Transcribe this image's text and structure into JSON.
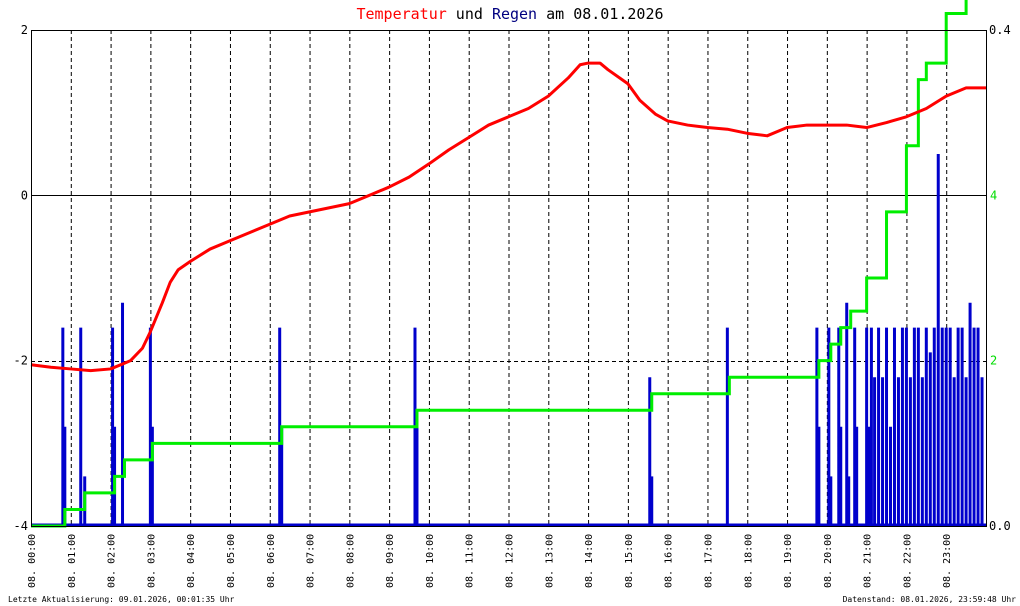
{
  "title": {
    "part1": "Temperatur",
    "part2": " und ",
    "part3": "Regen",
    "part4": " am 08.01.2026"
  },
  "footer": {
    "left": "Letzte Aktualisierung: 09.01.2026, 00:01:35 Uhr",
    "right": "Datenstand: 08.01.2026, 23:59:48 Uhr"
  },
  "colors": {
    "temperature": "#ff0000",
    "rain": "#0000cc",
    "rain_cumulative": "#00ee00",
    "title_regen": "#000080",
    "grid": "#000000",
    "right_axis_green": "#00dd00"
  },
  "chart_data": {
    "type": "line",
    "x_tick_labels": [
      "08. 00:00",
      "08. 01:00",
      "08. 02:00",
      "08. 03:00",
      "08. 04:00",
      "08. 05:00",
      "08. 06:00",
      "08. 07:00",
      "08. 08:00",
      "08. 09:00",
      "08. 10:00",
      "08. 11:00",
      "08. 12:00",
      "08. 13:00",
      "08. 14:00",
      "08. 15:00",
      "08. 16:00",
      "08. 17:00",
      "08. 18:00",
      "08. 19:00",
      "08. 20:00",
      "08. 21:00",
      "08. 22:00",
      "08. 23:00"
    ],
    "y_left_ticks": [
      "2",
      "0",
      "-2",
      "-4"
    ],
    "y_left_range": [
      -4,
      2
    ],
    "y_right_ticks_outer": [
      "0.4",
      "0.0"
    ],
    "y_right_range_rate": [
      0.0,
      0.4
    ],
    "y_right_ticks_cumulative": [
      "4",
      "2"
    ],
    "y_right_range_cumulative": [
      0,
      6
    ],
    "grid": true,
    "series": [
      {
        "name": "Temperatur",
        "axis": "left",
        "x": [
          0.0,
          0.5,
          1.0,
          1.5,
          2.0,
          2.5,
          2.8,
          3.0,
          3.3,
          3.5,
          3.7,
          4.0,
          4.5,
          5.0,
          5.5,
          6.0,
          6.5,
          7.0,
          7.5,
          8.0,
          8.5,
          9.0,
          9.5,
          10.0,
          10.5,
          11.0,
          11.5,
          12.0,
          12.5,
          13.0,
          13.5,
          13.8,
          14.0,
          14.3,
          14.5,
          15.0,
          15.3,
          15.7,
          16.0,
          16.5,
          17.0,
          17.5,
          18.0,
          18.5,
          19.0,
          19.5,
          20.0,
          20.5,
          21.0,
          21.5,
          22.0,
          22.5,
          23.0,
          23.5,
          24.0
        ],
        "y": [
          -2.05,
          -2.08,
          -2.1,
          -2.12,
          -2.1,
          -2.0,
          -1.85,
          -1.65,
          -1.3,
          -1.05,
          -0.9,
          -0.8,
          -0.65,
          -0.55,
          -0.45,
          -0.35,
          -0.25,
          -0.2,
          -0.15,
          -0.1,
          0.0,
          0.1,
          0.22,
          0.38,
          0.55,
          0.7,
          0.85,
          0.95,
          1.05,
          1.2,
          1.42,
          1.58,
          1.6,
          1.6,
          1.52,
          1.35,
          1.15,
          0.98,
          0.9,
          0.85,
          0.82,
          0.8,
          0.75,
          0.72,
          0.82,
          0.85,
          0.85,
          0.85,
          0.82,
          0.88,
          0.95,
          1.05,
          1.2,
          1.3,
          1.3
        ]
      },
      {
        "name": "Regen",
        "axis": "right_rate",
        "x": [
          0.8,
          0.85,
          1.25,
          1.35,
          2.05,
          2.1,
          2.3,
          2.4,
          3.0,
          3.05,
          6.25,
          6.3,
          9.65,
          9.7,
          15.55,
          15.6,
          17.5,
          17.55,
          19.75,
          19.8,
          20.05,
          20.1,
          20.3,
          20.35,
          20.5,
          20.55,
          20.7,
          20.75,
          21.0,
          21.05,
          21.12,
          21.2,
          21.3,
          21.4,
          21.5,
          21.6,
          21.7,
          21.8,
          21.9,
          22.0,
          22.1,
          22.2,
          22.3,
          22.4,
          22.5,
          22.6,
          22.7,
          22.8,
          22.9,
          23.0,
          23.1,
          23.2,
          23.3,
          23.4,
          23.5,
          23.6,
          23.7,
          23.8,
          23.9
        ],
        "y": [
          0.16,
          0.08,
          0.16,
          0.04,
          0.16,
          0.08,
          0.18,
          0.0,
          0.16,
          0.08,
          0.16,
          0.08,
          0.16,
          0.08,
          0.12,
          0.04,
          0.16,
          0.0,
          0.16,
          0.08,
          0.16,
          0.04,
          0.16,
          0.08,
          0.18,
          0.04,
          0.16,
          0.08,
          0.16,
          0.08,
          0.16,
          0.12,
          0.16,
          0.12,
          0.16,
          0.08,
          0.16,
          0.12,
          0.16,
          0.16,
          0.12,
          0.16,
          0.16,
          0.12,
          0.16,
          0.14,
          0.16,
          0.3,
          0.16,
          0.16,
          0.16,
          0.12,
          0.16,
          0.16,
          0.12,
          0.18,
          0.16,
          0.16,
          0.12
        ]
      },
      {
        "name": "Regen kumuliert",
        "axis": "right_cumulative",
        "x": [
          0.0,
          0.85,
          1.35,
          2.1,
          2.35,
          3.05,
          6.3,
          9.7,
          15.6,
          17.55,
          19.8,
          20.1,
          20.35,
          20.6,
          21.0,
          21.5,
          22.0,
          22.3,
          22.5,
          23.0,
          23.5,
          24.0
        ],
        "y": [
          0.0,
          0.2,
          0.4,
          0.6,
          0.8,
          1.0,
          1.2,
          1.4,
          1.6,
          1.8,
          2.0,
          2.2,
          2.4,
          2.6,
          3.0,
          3.8,
          4.6,
          5.4,
          5.6,
          6.2,
          7.2,
          8.2
        ]
      }
    ]
  }
}
